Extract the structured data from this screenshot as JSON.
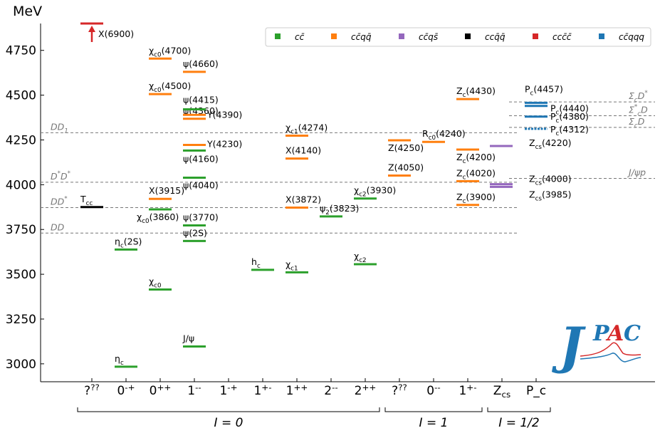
{
  "colors": {
    "cc": "#2ca02c",
    "ccqq": "#ff7f0e",
    "ccqs": "#9467bd",
    "ccqq_open": "#000000",
    "cccc": "#d62728",
    "ccqqq": "#1f77b4",
    "threshold": "#777777",
    "axis": "#000000"
  },
  "chart_data": {
    "type": "spectrum",
    "unit": "MeV",
    "ylim": [
      2900,
      4900
    ],
    "yticks": [
      3000,
      3250,
      3500,
      3750,
      4000,
      4250,
      4500,
      4750
    ],
    "categories": [
      "?^{??}",
      "0^{-+}",
      "0^{++}",
      "1^{--}",
      "1^{-+}",
      "1^{+-}",
      "1^{++}",
      "2^{--}",
      "2^{++}",
      "?^{??}",
      "0^{--}",
      "1^{+-}",
      "Z_{cs}",
      "P_c"
    ],
    "groups": [
      {
        "label": "I = 0",
        "from": 0,
        "to": 8
      },
      {
        "label": "I = 1",
        "from": 9,
        "to": 11
      },
      {
        "label": "I = 1/2",
        "from": 12,
        "to": 13
      }
    ],
    "legend": [
      {
        "key": "cc",
        "label": "cc̄"
      },
      {
        "key": "ccqq",
        "label": "cc̄qq̄"
      },
      {
        "key": "ccqs",
        "label": "cc̄qs̄"
      },
      {
        "key": "ccqq_open",
        "label": "ccq̄q̄"
      },
      {
        "key": "cccc",
        "label": "ccc̄c̄"
      },
      {
        "key": "ccqqq",
        "label": "cc̄qqq"
      }
    ],
    "thresholds": [
      {
        "label": "DD",
        "mass": 3730,
        "side": "left"
      },
      {
        "label": "DD*",
        "mass": 3872,
        "side": "left"
      },
      {
        "label": "D*D*",
        "mass": 4014,
        "side": "left"
      },
      {
        "label": "DD1",
        "mass": 4290,
        "side": "left"
      },
      {
        "label": "J/ψp",
        "mass": 4035,
        "side": "right"
      },
      {
        "label": "ΣcD",
        "mass": 4320,
        "side": "right"
      },
      {
        "label": "Σc*D",
        "mass": 4385,
        "side": "right"
      },
      {
        "label": "ΣcD*",
        "mass": 4462,
        "side": "right"
      }
    ],
    "states": [
      {
        "cat": 0,
        "mass": 3875,
        "type": "ccqq_open",
        "label": "Tcc"
      },
      {
        "cat": 0,
        "mass": 6900,
        "type": "cccc",
        "label": "X(6900)",
        "offscale": true
      },
      {
        "cat": 1,
        "mass": 2984,
        "type": "cc",
        "label": "ηc"
      },
      {
        "cat": 1,
        "mass": 3638,
        "type": "cc",
        "label": "ηc(2S)"
      },
      {
        "cat": 2,
        "mass": 3415,
        "type": "cc",
        "label": "χc0"
      },
      {
        "cat": 2,
        "mass": 3862,
        "type": "cc",
        "label": "χc0(3860)"
      },
      {
        "cat": 2,
        "mass": 3921,
        "type": "ccqq",
        "label": "X(3915)"
      },
      {
        "cat": 2,
        "mass": 4506,
        "type": "ccqq",
        "label": "χc0(4500)"
      },
      {
        "cat": 2,
        "mass": 4704,
        "type": "ccqq",
        "label": "χc0(4700)"
      },
      {
        "cat": 3,
        "mass": 3097,
        "type": "cc",
        "label": "J/ψ"
      },
      {
        "cat": 3,
        "mass": 3686,
        "type": "cc",
        "label": "ψ(2S)"
      },
      {
        "cat": 3,
        "mass": 3773,
        "type": "cc",
        "label": "ψ(3770)"
      },
      {
        "cat": 3,
        "mass": 4039,
        "type": "cc",
        "label": "ψ(4040)"
      },
      {
        "cat": 3,
        "mass": 4191,
        "type": "cc",
        "label": "ψ(4160)"
      },
      {
        "cat": 3,
        "mass": 4222,
        "type": "ccqq",
        "label": "Y(4230)"
      },
      {
        "cat": 3,
        "mass": 4368,
        "type": "ccqq",
        "label": "ψ(4360)"
      },
      {
        "cat": 3,
        "mass": 4390,
        "type": "ccqq",
        "label": "Y(4390)"
      },
      {
        "cat": 3,
        "mass": 4421,
        "type": "cc",
        "label": "ψ(4415)"
      },
      {
        "cat": 3,
        "mass": 4630,
        "type": "ccqq",
        "label": "ψ(4660)"
      },
      {
        "cat": 5,
        "mass": 3525,
        "type": "cc",
        "label": "hc"
      },
      {
        "cat": 6,
        "mass": 3511,
        "type": "cc",
        "label": "χc1"
      },
      {
        "cat": 6,
        "mass": 3872,
        "type": "ccqq",
        "label": "X(3872)"
      },
      {
        "cat": 6,
        "mass": 4146,
        "type": "ccqq",
        "label": "X(4140)"
      },
      {
        "cat": 6,
        "mass": 4274,
        "type": "ccqq",
        "label": "χc1(4274)"
      },
      {
        "cat": 7,
        "mass": 3823,
        "type": "cc",
        "label": "ψ2(3823)"
      },
      {
        "cat": 8,
        "mass": 3556,
        "type": "cc",
        "label": "χc2"
      },
      {
        "cat": 8,
        "mass": 3923,
        "type": "cc",
        "label": "χc2(3930)"
      },
      {
        "cat": 9,
        "mass": 4051,
        "type": "ccqq",
        "label": "Z(4050)"
      },
      {
        "cat": 9,
        "mass": 4248,
        "type": "ccqq",
        "label": "Z(4250)"
      },
      {
        "cat": 10,
        "mass": 4239,
        "type": "ccqq",
        "label": "Rc0(4240)"
      },
      {
        "cat": 11,
        "mass": 3887,
        "type": "ccqq",
        "label": "Zc(3900)"
      },
      {
        "cat": 11,
        "mass": 4020,
        "type": "ccqq",
        "label": "Zc(4020)"
      },
      {
        "cat": 11,
        "mass": 4196,
        "type": "ccqq",
        "label": "Zc(4200)"
      },
      {
        "cat": 11,
        "mass": 4478,
        "type": "ccqq",
        "label": "Zc(4430)"
      },
      {
        "cat": 12,
        "mass": 3988,
        "type": "ccqs",
        "label": "Zcs(3985)"
      },
      {
        "cat": 12,
        "mass": 4003,
        "type": "ccqs",
        "label": "Zcs(4000)"
      },
      {
        "cat": 12,
        "mass": 4216,
        "type": "ccqs",
        "label": "Zcs(4220)"
      },
      {
        "cat": 13,
        "mass": 4312,
        "type": "ccqqq",
        "label": "Pc(4312)"
      },
      {
        "cat": 13,
        "mass": 4380,
        "type": "ccqqq",
        "label": "Pc(4380)"
      },
      {
        "cat": 13,
        "mass": 4440,
        "type": "ccqqq",
        "label": "Pc(4440)"
      },
      {
        "cat": 13,
        "mass": 4457,
        "type": "ccqqq",
        "label": "Pc(4457)"
      }
    ],
    "logo": "JPAC"
  }
}
